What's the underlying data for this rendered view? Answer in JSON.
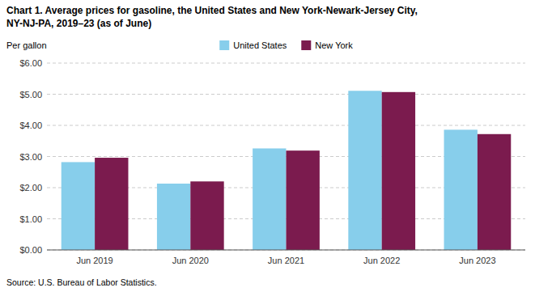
{
  "chart_data": {
    "type": "bar",
    "title": "Chart 1. Average prices for gasoline, the United States and New York-Newark-Jersey City,",
    "subtitle": "NY-NJ-PA, 2019–23 (as of June)",
    "y_label": "Per gallon",
    "source": "Source: U.S. Bureau of Labor Statistics.",
    "categories": [
      "Jun 2019",
      "Jun 2020",
      "Jun 2021",
      "Jun 2022",
      "Jun 2023"
    ],
    "series": [
      {
        "name": "United States",
        "color": "#87CEEB",
        "values": [
          2.82,
          2.13,
          3.26,
          5.11,
          3.86
        ]
      },
      {
        "name": "New York",
        "color": "#7B1B4E",
        "values": [
          2.96,
          2.2,
          3.19,
          5.07,
          3.72
        ]
      }
    ],
    "ylim": [
      0,
      6.0
    ],
    "yticks": [
      {
        "value": 0.0,
        "label": "$0.00"
      },
      {
        "value": 1.0,
        "label": "$1.00"
      },
      {
        "value": 2.0,
        "label": "$2.00"
      },
      {
        "value": 3.0,
        "label": "$3.00"
      },
      {
        "value": 4.0,
        "label": "$4.00"
      },
      {
        "value": 5.0,
        "label": "$5.00"
      },
      {
        "value": 6.0,
        "label": "$6.00"
      }
    ],
    "grid": true,
    "legend": "top"
  }
}
